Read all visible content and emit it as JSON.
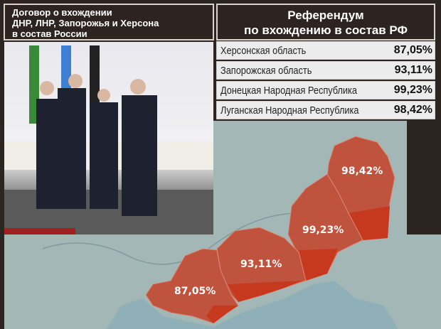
{
  "left_header": {
    "lines": [
      "Договор о вхождении",
      "ДНР, ЛНР, Запорожья и Херсона",
      "в состав России"
    ]
  },
  "right_header": {
    "lines": [
      "Референдум",
      "по вхождению в состав РФ"
    ]
  },
  "results": [
    {
      "region": "Херсонская область",
      "value": "87,05%"
    },
    {
      "region": "Запорожская область",
      "value": "93,11%"
    },
    {
      "region": "Донецкая Народная Республика",
      "value": "99,23%"
    },
    {
      "region": "Луганская Народная Республика",
      "value": "98,42%"
    }
  ],
  "map": {
    "labels": {
      "kherson": "87,05%",
      "zaporozhye": "93,11%",
      "donetsk": "99,23%",
      "luhansk": "98,42%"
    },
    "colors": {
      "region": "#c0533d",
      "region_dark": "#c6391f",
      "land": "#9fb4b4",
      "sea": "#8fb0b8"
    }
  }
}
